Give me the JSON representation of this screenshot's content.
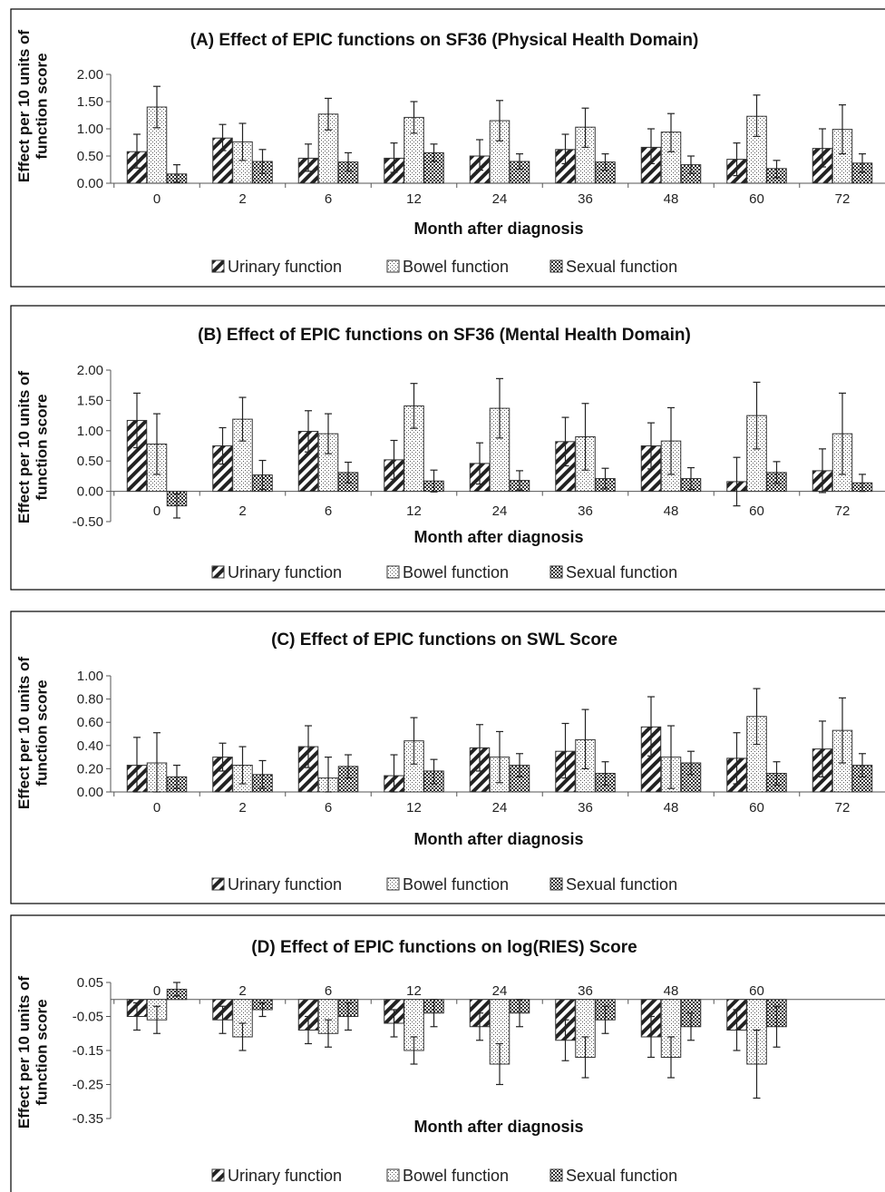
{
  "legend": {
    "urinary": "Urinary function",
    "bowel": "Bowel function",
    "sexual": "Sexual function"
  },
  "chart_data": [
    {
      "type": "bar",
      "title": "(A) Effect of EPIC functions on SF36 (Physical Health Domain)",
      "xlabel": "Month after diagnosis",
      "ylabel": "Effect per 10 units of function score",
      "categories": [
        "0",
        "2",
        "6",
        "12",
        "24",
        "36",
        "48",
        "60",
        "72"
      ],
      "ylim": [
        0,
        2
      ],
      "yticks": [
        "0.00",
        "0.50",
        "1.00",
        "1.50",
        "2.00"
      ],
      "legend_position": "bottom",
      "series": [
        {
          "name": "Urinary function",
          "values": [
            0.58,
            0.83,
            0.46,
            0.46,
            0.5,
            0.62,
            0.66,
            0.44,
            0.64
          ],
          "err_low": [
            0.28,
            0.6,
            0.22,
            0.2,
            0.24,
            0.36,
            0.36,
            0.14,
            0.3
          ],
          "err_high": [
            0.9,
            1.08,
            0.72,
            0.74,
            0.8,
            0.9,
            1.0,
            0.74,
            1.0
          ]
        },
        {
          "name": "Bowel function",
          "values": [
            1.4,
            0.76,
            1.27,
            1.21,
            1.15,
            1.03,
            0.94,
            1.23,
            0.99
          ],
          "err_low": [
            1.02,
            0.42,
            0.98,
            0.92,
            0.78,
            0.66,
            0.58,
            0.86,
            0.54
          ],
          "err_high": [
            1.78,
            1.1,
            1.56,
            1.5,
            1.52,
            1.38,
            1.28,
            1.62,
            1.44
          ]
        },
        {
          "name": "Sexual function",
          "values": [
            0.17,
            0.4,
            0.39,
            0.56,
            0.4,
            0.39,
            0.34,
            0.27,
            0.37
          ],
          "err_low": [
            0.02,
            0.18,
            0.22,
            0.4,
            0.26,
            0.24,
            0.18,
            0.1,
            0.2
          ],
          "err_high": [
            0.34,
            0.62,
            0.56,
            0.72,
            0.54,
            0.54,
            0.5,
            0.42,
            0.54
          ]
        }
      ]
    },
    {
      "type": "bar",
      "title": "(B) Effect of EPIC functions on SF36 (Mental Health Domain)",
      "xlabel": "Month after diagnosis",
      "ylabel": "Effect per 10 units of function score",
      "categories": [
        "0",
        "2",
        "6",
        "12",
        "24",
        "36",
        "48",
        "60",
        "72"
      ],
      "ylim": [
        -0.5,
        2
      ],
      "yticks": [
        "-0.50",
        "0.00",
        "0.50",
        "1.00",
        "1.50",
        "2.00"
      ],
      "legend_position": "bottom",
      "series": [
        {
          "name": "Urinary function",
          "values": [
            1.17,
            0.75,
            0.99,
            0.52,
            0.46,
            0.82,
            0.75,
            0.16,
            0.34
          ],
          "err_low": [
            0.72,
            0.45,
            0.65,
            0.2,
            0.12,
            0.42,
            0.37,
            -0.24,
            -0.02
          ],
          "err_high": [
            1.62,
            1.05,
            1.33,
            0.84,
            0.8,
            1.22,
            1.13,
            0.56,
            0.7
          ]
        },
        {
          "name": "Bowel function",
          "values": [
            0.78,
            1.19,
            0.95,
            1.41,
            1.37,
            0.9,
            0.83,
            1.25,
            0.95
          ],
          "err_low": [
            0.28,
            0.83,
            0.62,
            1.04,
            0.88,
            0.35,
            0.28,
            0.7,
            0.28
          ],
          "err_high": [
            1.28,
            1.55,
            1.28,
            1.78,
            1.86,
            1.45,
            1.38,
            1.8,
            1.62
          ]
        },
        {
          "name": "Sexual function",
          "values": [
            -0.24,
            0.27,
            0.31,
            0.17,
            0.18,
            0.21,
            0.21,
            0.31,
            0.14
          ],
          "err_low": [
            -0.44,
            0.03,
            0.14,
            -0.01,
            0.02,
            0.04,
            0.03,
            0.13,
            0.0
          ],
          "err_high": [
            -0.04,
            0.51,
            0.48,
            0.35,
            0.34,
            0.38,
            0.39,
            0.49,
            0.28
          ]
        }
      ]
    },
    {
      "type": "bar",
      "title": "(C) Effect of EPIC functions on SWL Score",
      "xlabel": "Month after diagnosis",
      "ylabel": "Effect per 10 units of function score",
      "categories": [
        "0",
        "2",
        "6",
        "12",
        "24",
        "36",
        "48",
        "60",
        "72"
      ],
      "ylim": [
        0,
        1
      ],
      "yticks": [
        "0.00",
        "0.20",
        "0.40",
        "0.60",
        "0.80",
        "1.00"
      ],
      "legend_position": "bottom",
      "series": [
        {
          "name": "Urinary function",
          "values": [
            0.23,
            0.3,
            0.39,
            0.14,
            0.38,
            0.35,
            0.56,
            0.29,
            0.37
          ],
          "err_low": [
            0.0,
            0.18,
            0.21,
            0.0,
            0.18,
            0.12,
            0.31,
            0.07,
            0.13
          ],
          "err_high": [
            0.47,
            0.42,
            0.57,
            0.32,
            0.58,
            0.59,
            0.82,
            0.51,
            0.61
          ]
        },
        {
          "name": "Bowel function",
          "values": [
            0.25,
            0.23,
            0.12,
            0.44,
            0.3,
            0.45,
            0.3,
            0.65,
            0.53
          ],
          "err_low": [
            0.0,
            0.07,
            0.0,
            0.24,
            0.08,
            0.2,
            0.03,
            0.41,
            0.25
          ],
          "err_high": [
            0.51,
            0.39,
            0.3,
            0.64,
            0.52,
            0.71,
            0.57,
            0.89,
            0.81
          ]
        },
        {
          "name": "Sexual function",
          "values": [
            0.13,
            0.15,
            0.22,
            0.18,
            0.23,
            0.16,
            0.25,
            0.16,
            0.23
          ],
          "err_low": [
            0.03,
            0.03,
            0.12,
            0.07,
            0.13,
            0.06,
            0.15,
            0.06,
            0.13
          ],
          "err_high": [
            0.23,
            0.27,
            0.32,
            0.28,
            0.33,
            0.26,
            0.35,
            0.26,
            0.33
          ]
        }
      ]
    },
    {
      "type": "bar",
      "title": "(D) Effect of EPIC functions on log(RIES) Score",
      "xlabel": "Month after diagnosis",
      "ylabel": "Effect per 10 units of function score",
      "categories": [
        "0",
        "2",
        "6",
        "12",
        "24",
        "36",
        "48",
        "60"
      ],
      "category_position": "top",
      "ylim": [
        -0.35,
        0.05
      ],
      "yticks": [
        "-0.35",
        "-0.25",
        "-0.15",
        "-0.05",
        "0.05"
      ],
      "legend_position": "bottom",
      "series": [
        {
          "name": "Urinary function",
          "values": [
            -0.05,
            -0.06,
            -0.09,
            -0.07,
            -0.08,
            -0.12,
            -0.11,
            -0.09
          ],
          "err_low": [
            -0.09,
            -0.1,
            -0.13,
            -0.11,
            -0.12,
            -0.18,
            -0.17,
            -0.15
          ],
          "err_high": [
            -0.01,
            -0.02,
            -0.05,
            -0.03,
            -0.04,
            -0.06,
            -0.05,
            -0.03
          ]
        },
        {
          "name": "Bowel function",
          "values": [
            -0.06,
            -0.11,
            -0.1,
            -0.15,
            -0.19,
            -0.17,
            -0.17,
            -0.19
          ],
          "err_low": [
            -0.1,
            -0.15,
            -0.14,
            -0.19,
            -0.25,
            -0.23,
            -0.23,
            -0.29
          ],
          "err_high": [
            -0.02,
            -0.07,
            -0.06,
            -0.11,
            -0.13,
            -0.11,
            -0.11,
            -0.09
          ]
        },
        {
          "name": "Sexual function",
          "values": [
            0.03,
            -0.03,
            -0.05,
            -0.04,
            -0.04,
            -0.06,
            -0.08,
            -0.08
          ],
          "err_low": [
            0.01,
            -0.05,
            -0.09,
            -0.08,
            -0.08,
            -0.1,
            -0.12,
            -0.14
          ],
          "err_high": [
            0.05,
            -0.01,
            -0.01,
            0.0,
            0.0,
            -0.02,
            -0.04,
            -0.02
          ]
        }
      ]
    }
  ]
}
